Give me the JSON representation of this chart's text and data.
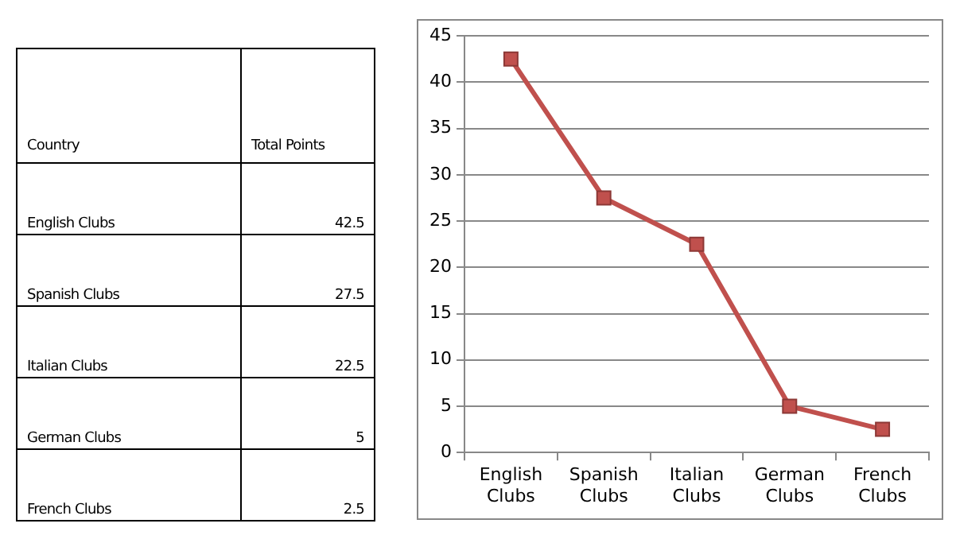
{
  "chart_data": {
    "type": "line",
    "annotations": [
      "Country",
      "Total Points",
      "42.5",
      "27.5",
      "22.5",
      "5",
      "2.5"
    ],
    "categories": [
      "English Clubs",
      "Spanish Clubs",
      "Italian Clubs",
      "German Clubs",
      "French Clubs"
    ],
    "series": [
      {
        "color": "#c0504d",
        "values": [
          42.5,
          27.5,
          22.5,
          5,
          2.5
        ]
      }
    ],
    "ylim": [
      0,
      45
    ],
    "yticks": [
      0,
      5,
      10,
      15,
      20,
      25,
      30,
      35,
      40,
      45
    ],
    "grid": "y",
    "marker": "square",
    "line_style": "solid"
  }
}
